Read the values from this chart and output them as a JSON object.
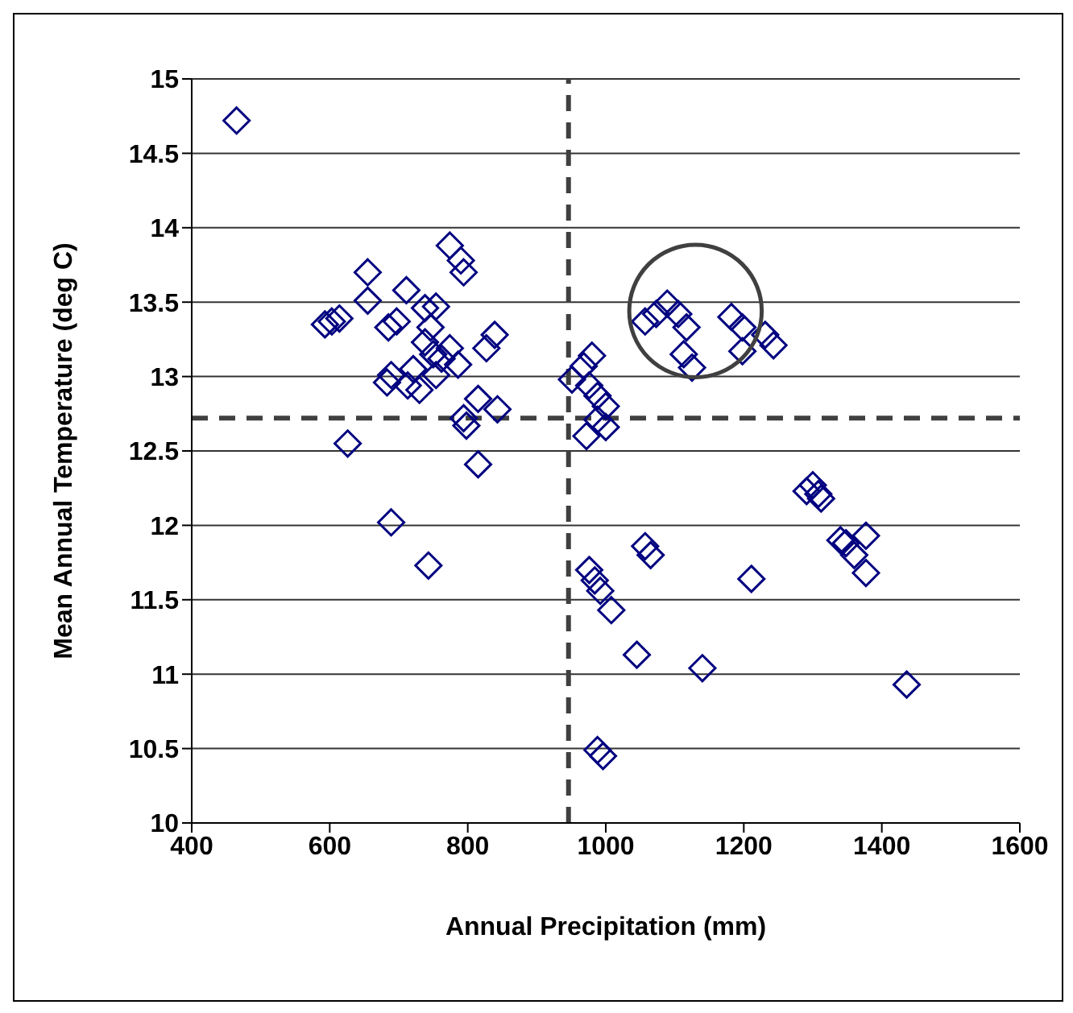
{
  "chart_data": {
    "type": "scatter",
    "xlabel": "Annual Precipitation (mm)",
    "ylabel": "Mean Annual Temperature (deg C)",
    "xlim": [
      400,
      1600
    ],
    "xticks": [
      400,
      600,
      800,
      1000,
      1200,
      1400,
      1600
    ],
    "ylim": [
      10,
      15
    ],
    "yticks": [
      10,
      10.5,
      11,
      11.5,
      12,
      12.5,
      13,
      13.5,
      14,
      14.5,
      15
    ],
    "grid": "y",
    "legend": false,
    "marker": "diamond",
    "ref_lines": [
      {
        "axis": "x",
        "value": 946,
        "color": "#404040",
        "line_style": "dashed"
      },
      {
        "axis": "y",
        "value": 12.72,
        "color": "#404040",
        "line_style": "dashed"
      }
    ],
    "series": [
      {
        "color": "#000080",
        "x": [
          465,
          593,
          603,
          614,
          655,
          655,
          626,
          689,
          743,
          683,
          689,
          711,
          774,
          790,
          794,
          839,
          827,
          843,
          815,
          798,
          815,
          794,
          730,
          750,
          738,
          762,
          754,
          746,
          774,
          721,
          713,
          786,
          738,
          697,
          685,
          754,
          951,
          980,
          968,
          976,
          988,
          1000,
          972,
          1000,
          988,
          1057,
          1089,
          1105,
          1117,
          1113,
          1125,
          1182,
          1198,
          1198,
          1231,
          1243,
          1073,
          1300,
          1308,
          1291,
          1312,
          1348,
          1377,
          1360,
          1377,
          1340,
          1057,
          1065,
          1211,
          976,
          984,
          992,
          1008,
          1045,
          1140,
          1436,
          988,
          996
        ],
        "values": [
          14.72,
          13.35,
          13.37,
          13.39,
          13.7,
          13.51,
          12.55,
          12.02,
          11.73,
          12.96,
          13.01,
          13.58,
          13.88,
          13.78,
          13.7,
          13.28,
          13.19,
          12.78,
          12.85,
          12.67,
          12.41,
          12.72,
          12.91,
          13.15,
          13.23,
          13.12,
          13.01,
          13.33,
          13.19,
          13.05,
          12.94,
          13.08,
          13.46,
          13.37,
          13.33,
          13.47,
          12.98,
          13.14,
          13.07,
          12.94,
          12.87,
          12.8,
          12.6,
          12.66,
          12.71,
          13.37,
          13.49,
          13.42,
          13.33,
          13.15,
          13.06,
          13.4,
          13.33,
          13.17,
          13.28,
          13.21,
          13.42,
          12.27,
          12.21,
          12.23,
          12.18,
          11.88,
          11.93,
          11.8,
          11.68,
          11.9,
          11.86,
          11.8,
          11.64,
          11.7,
          11.63,
          11.56,
          11.43,
          11.13,
          11.04,
          10.93,
          10.49,
          10.45
        ]
      }
    ]
  }
}
